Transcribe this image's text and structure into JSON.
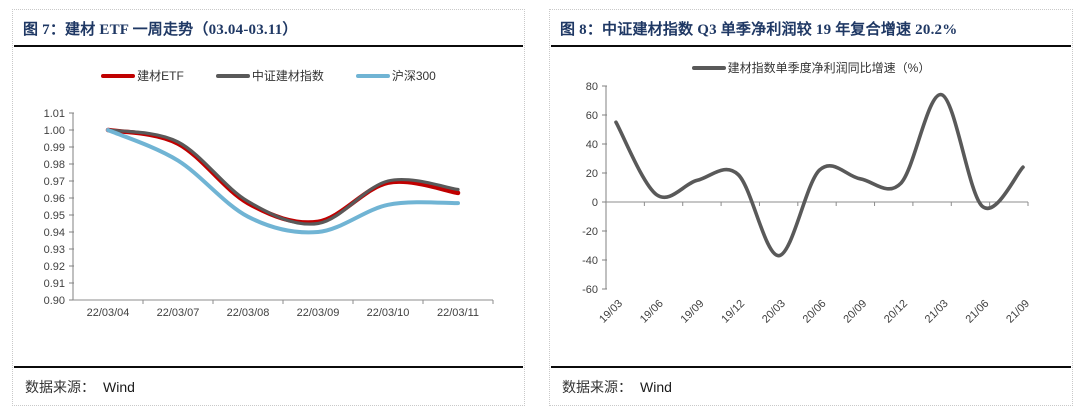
{
  "colors": {
    "title_navy": "#1F3864",
    "etf_red": "#C00000",
    "index_gray": "#595959",
    "hs300_blue": "#70B4D4",
    "axis_gray": "#808080",
    "label_gray": "#404040"
  },
  "panels": [
    {
      "title": "图 7：建材 ETF 一周走势（03.04-03.11）",
      "source_label": "数据来源：",
      "source": "Wind"
    },
    {
      "title": "图 8：中证建材指数 Q3 单季净利润较 19 年复合增速 20.2%",
      "source_label": "数据来源：",
      "source": "Wind"
    }
  ],
  "chart_data": [
    {
      "type": "line",
      "title": "建材 ETF 一周走势（03.04-03.11）",
      "categories": [
        "22/03/04",
        "22/03/07",
        "22/03/08",
        "22/03/09",
        "22/03/10",
        "22/03/11"
      ],
      "series": [
        {
          "name": "建材ETF",
          "color": "#C00000",
          "values": [
            1.0,
            0.992,
            0.957,
            0.946,
            0.969,
            0.963
          ]
        },
        {
          "name": "中证建材指数",
          "color": "#595959",
          "values": [
            1.0,
            0.993,
            0.958,
            0.945,
            0.97,
            0.965
          ]
        },
        {
          "name": "沪深300",
          "color": "#70B4D4",
          "values": [
            1.0,
            0.982,
            0.949,
            0.94,
            0.956,
            0.957
          ]
        }
      ],
      "ylim": [
        0.9,
        1.01
      ],
      "ytick_step": 0.01,
      "legend_position": "top",
      "grid": false,
      "smooth": true
    },
    {
      "type": "line",
      "title": "中证建材指数 Q3 单季净利润较 19 年复合增速 20.2%",
      "categories": [
        "19/03",
        "19/06",
        "19/09",
        "19/12",
        "20/03",
        "20/06",
        "20/09",
        "20/12",
        "21/03",
        "21/06",
        "21/09"
      ],
      "series": [
        {
          "name": "建材指数单季度净利润同比增速（%）",
          "color": "#595959",
          "values": [
            55,
            5,
            15,
            19,
            -37,
            22,
            16,
            13,
            74,
            -3,
            24
          ]
        }
      ],
      "ylim": [
        -60,
        80
      ],
      "ytick_step": 20,
      "legend_position": "top",
      "grid": false,
      "smooth": true,
      "x_labels_rotated": true
    }
  ]
}
